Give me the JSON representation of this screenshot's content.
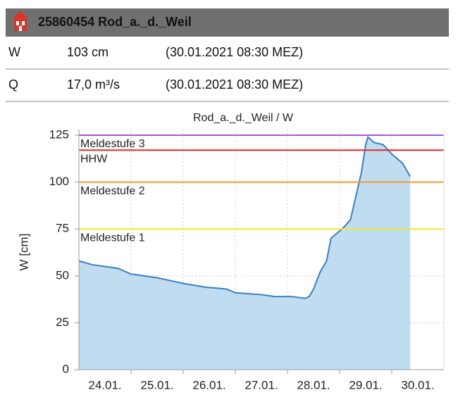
{
  "header": {
    "title": "25860454 Rod_a._d._Weil"
  },
  "table": {
    "rows": [
      [
        "W",
        "103 cm",
        "(30.01.2021 08:30 MEZ)"
      ],
      [
        "Q",
        "17,0 m³/s",
        "(30.01.2021 08:30 MEZ)"
      ]
    ]
  },
  "chart_data": {
    "type": "area",
    "title": "Rod_a._d._Weil / W",
    "y_label": "W [cm]",
    "x": [
      "2021-01-24T00:00",
      "2021-01-24T06:00",
      "2021-01-24T12:00",
      "2021-01-24T18:00",
      "2021-01-25T00:00",
      "2021-01-25T06:00",
      "2021-01-25T12:00",
      "2021-01-25T20:00",
      "2021-01-26T00:00",
      "2021-01-26T10:00",
      "2021-01-26T20:00",
      "2021-01-27T00:00",
      "2021-01-27T12:00",
      "2021-01-27T18:00",
      "2021-01-28T02:00",
      "2021-01-28T08:00",
      "2021-01-28T10:00",
      "2021-01-28T12:00",
      "2021-01-28T15:00",
      "2021-01-28T18:00",
      "2021-01-28T20:00",
      "2021-01-29T00:00",
      "2021-01-29T02:00",
      "2021-01-29T05:00",
      "2021-01-29T07:00",
      "2021-01-29T10:00",
      "2021-01-29T12:00",
      "2021-01-29T13:00",
      "2021-01-29T16:00",
      "2021-01-29T20:00",
      "2021-01-30T00:00",
      "2021-01-30T05:00",
      "2021-01-30T08:30"
    ],
    "values": [
      58,
      56,
      55,
      54,
      51,
      50,
      49,
      47,
      46,
      44,
      43,
      41,
      40,
      39,
      39,
      38,
      39,
      43,
      52,
      58,
      70,
      74,
      76,
      80,
      90,
      105,
      120,
      124,
      121,
      120,
      115,
      110,
      103
    ],
    "color": "#3a7fc0",
    "fill": "#c0dcf0",
    "xlim": [
      "2021-01-24T00:00",
      "2021-01-31T00:00"
    ],
    "xticks": [
      {
        "value": "2021-01-24T12:00",
        "label": "24.01."
      },
      {
        "value": "2021-01-25T12:00",
        "label": "25.01."
      },
      {
        "value": "2021-01-26T12:00",
        "label": "26.01."
      },
      {
        "value": "2021-01-27T12:00",
        "label": "27.01."
      },
      {
        "value": "2021-01-28T12:00",
        "label": "28.01."
      },
      {
        "value": "2021-01-29T12:00",
        "label": "29.01."
      },
      {
        "value": "2021-01-30T12:00",
        "label": "30.01."
      }
    ],
    "ylim": [
      0,
      125
    ],
    "yticks": [
      0,
      25,
      50,
      75,
      100,
      125
    ],
    "grid": true,
    "thresholds": [
      {
        "name": "Meldestufe 3",
        "value": 125,
        "color": "#a855e0"
      },
      {
        "name": "HHW",
        "value": 117,
        "color": "#e8262a"
      },
      {
        "name": "Meldestufe 2",
        "value": 100,
        "color": "#f39a2e"
      },
      {
        "name": "Meldestufe 1",
        "value": 75,
        "color": "#ecec2a"
      }
    ]
  }
}
